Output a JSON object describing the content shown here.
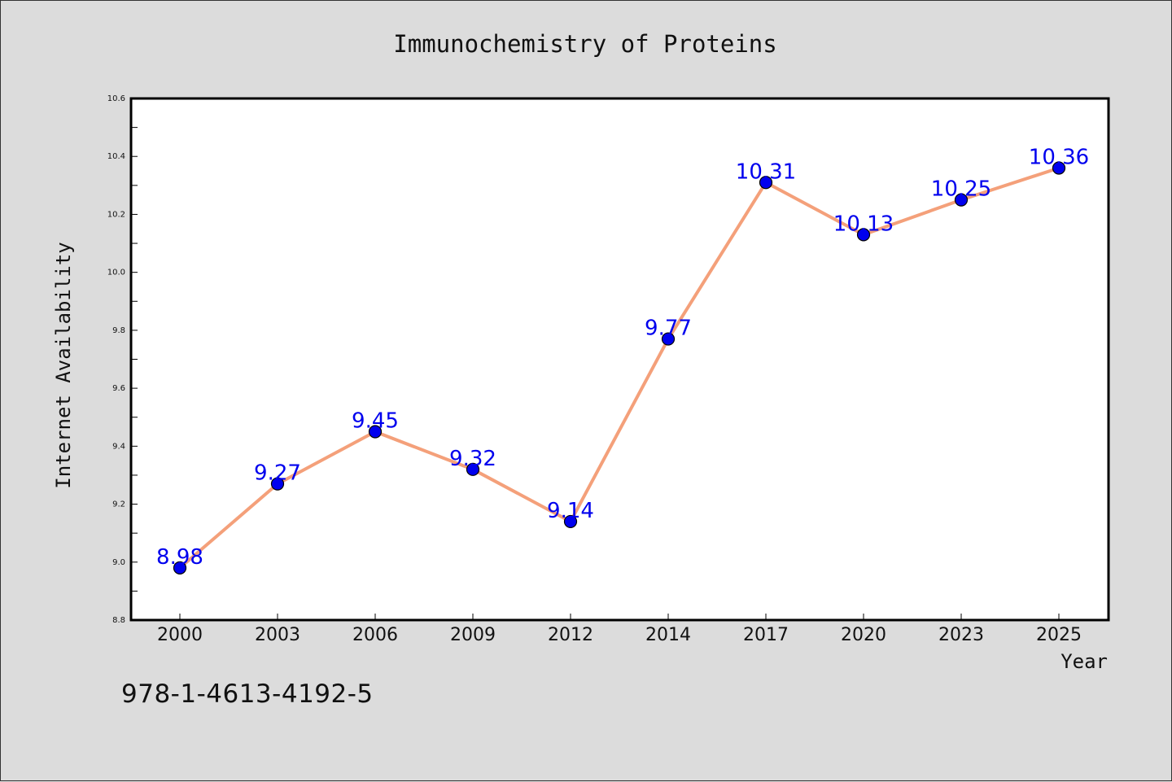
{
  "chart_data": {
    "type": "line",
    "title": "Immunochemistry of Proteins",
    "xlabel": "Year",
    "ylabel": "Internet Availability",
    "categories": [
      "2000",
      "2003",
      "2006",
      "2009",
      "2012",
      "2014",
      "2017",
      "2020",
      "2023",
      "2025"
    ],
    "series": [
      {
        "values": [
          8.98,
          9.27,
          9.45,
          9.32,
          9.14,
          9.77,
          10.31,
          10.13,
          10.25,
          10.36
        ]
      }
    ],
    "data_labels": [
      "8.98",
      "9.27",
      "9.45",
      "9.32",
      "9.14",
      "9.77",
      "10.31",
      "10.13",
      "10.25",
      "10.36"
    ],
    "ylim": [
      8.8,
      10.6
    ],
    "yticks": [
      "8.8",
      "9.0",
      "9.2",
      "9.4",
      "9.6",
      "9.8",
      "10.0",
      "10.2",
      "10.4",
      "10.6"
    ],
    "grid": false,
    "legend": "none",
    "colors": {
      "line": "#f4a07a",
      "marker": "#0000ee",
      "label": "#0000ee",
      "background": "#dcdcdc",
      "plot_background": "#ffffff"
    }
  },
  "footer": {
    "isbn": "978-1-4613-4192-5"
  }
}
